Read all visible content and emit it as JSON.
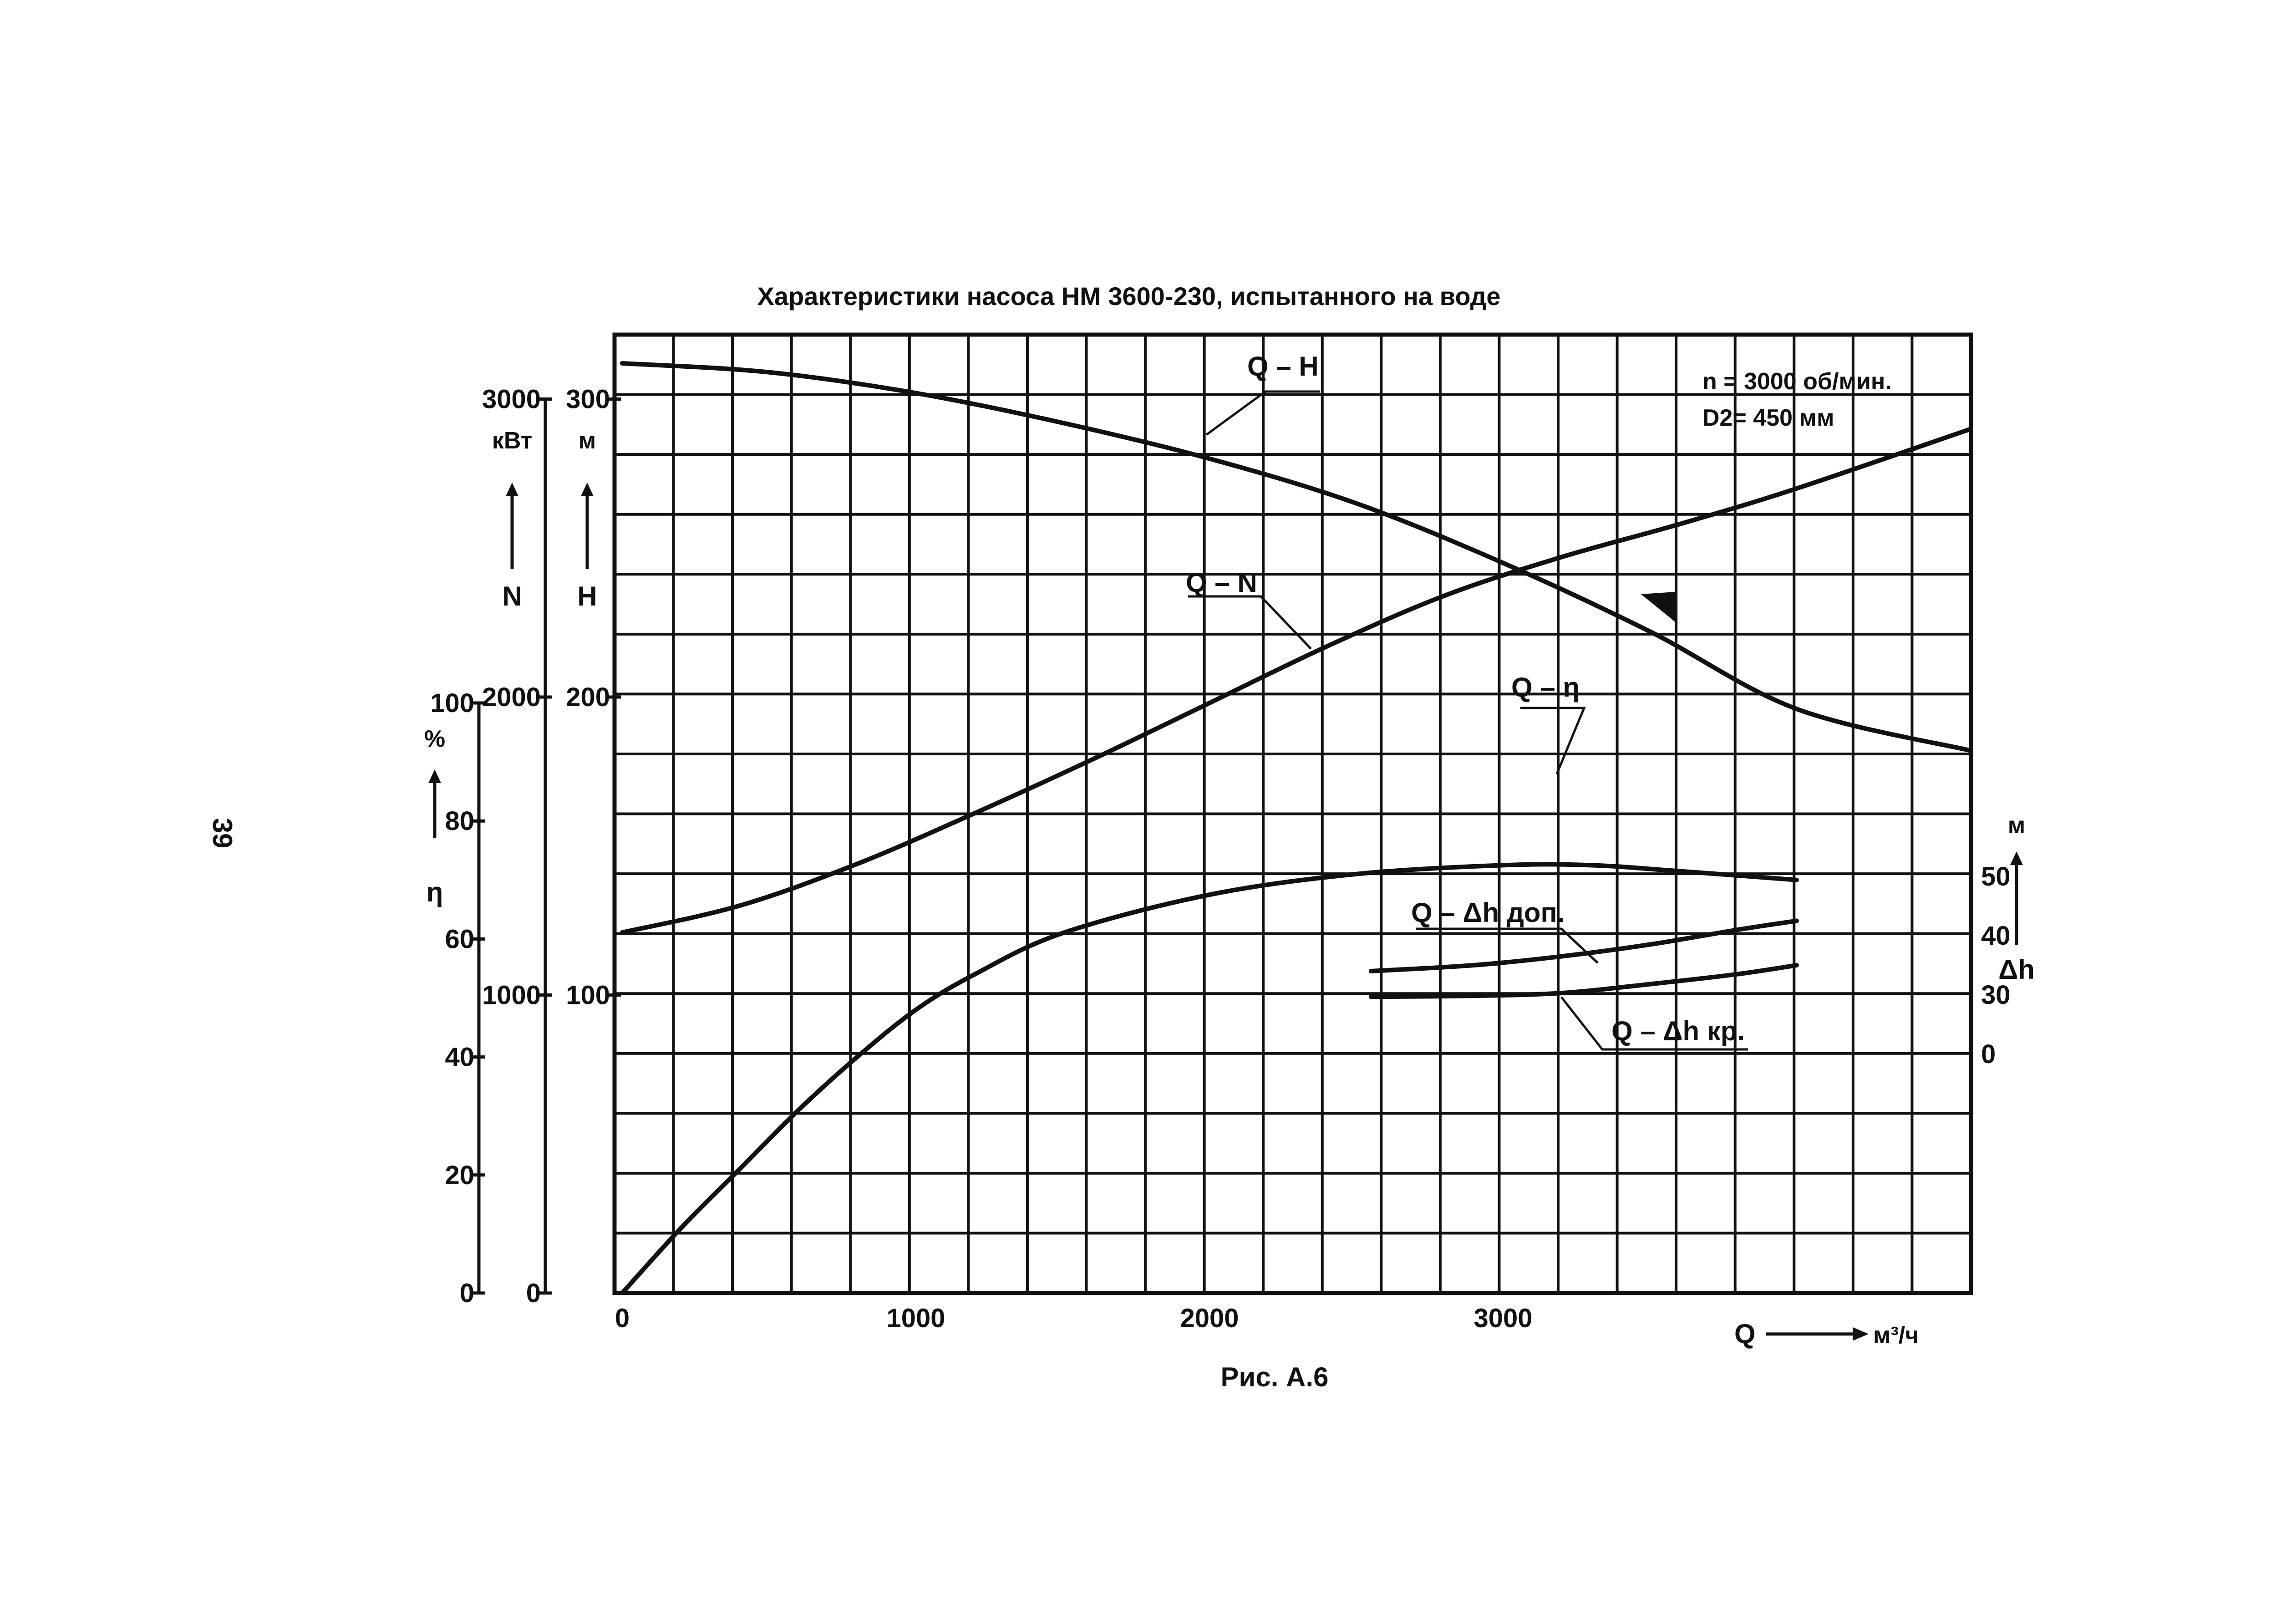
{
  "page_number": "39",
  "chart_data": {
    "type": "line",
    "title": "Характеристики насоса НМ 3600-230, испытанного на воде",
    "caption": "Рис. А.6",
    "annotations": [
      "n = 3000 об/мин.",
      "D2= 450 мм"
    ],
    "x_axis": {
      "label": "Q",
      "unit": "м³/ч",
      "ticks": [
        "0",
        "1000",
        "2000",
        "3000"
      ],
      "range": [
        0,
        4600
      ]
    },
    "y_axes": [
      {
        "id": "eta",
        "label": "η",
        "unit": "%",
        "ticks": [
          "0",
          "20",
          "40",
          "60",
          "80",
          "100"
        ],
        "range": [
          0,
          100
        ]
      },
      {
        "id": "N",
        "label": "N",
        "unit": "кВт",
        "ticks": [
          "0",
          "1000",
          "2000",
          "3000"
        ],
        "range": [
          0,
          3000
        ]
      },
      {
        "id": "H",
        "label": "H",
        "unit": "м",
        "ticks": [
          "100",
          "200",
          "300"
        ],
        "range": [
          0,
          300
        ]
      },
      {
        "id": "dh",
        "label": "Δh",
        "unit": "м",
        "ticks": [
          "0",
          "30",
          "40",
          "50"
        ],
        "range": [
          0,
          60
        ]
      }
    ],
    "grid": true,
    "series": [
      {
        "name": "Q – H",
        "axis": "H",
        "x": [
          0,
          500,
          1000,
          1500,
          2000,
          2500,
          3000,
          3500,
          4000,
          4600
        ],
        "y": [
          312,
          309,
          302,
          292,
          280,
          265,
          245,
          222,
          196,
          182
        ]
      },
      {
        "name": "Q – N",
        "axis": "N",
        "x": [
          0,
          400,
          800,
          1200,
          1600,
          2000,
          2400,
          2800,
          3200,
          3600,
          4000,
          4600
        ],
        "y": [
          1210,
          1300,
          1440,
          1610,
          1790,
          1980,
          2170,
          2340,
          2470,
          2580,
          2700,
          2900
        ]
      },
      {
        "name": "Q – η",
        "axis": "eta",
        "x": [
          0,
          200,
          400,
          600,
          800,
          1000,
          1200,
          1500,
          2000,
          2500,
          3000,
          3300,
          3600,
          4000
        ],
        "y": [
          0,
          11,
          21,
          31,
          40,
          48,
          54,
          61,
          67.5,
          71,
          72.5,
          72.5,
          71.5,
          70
        ]
      },
      {
        "name": "Q – Δh доп.",
        "axis": "dh",
        "x": [
          2550,
          2900,
          3200,
          3500,
          3800,
          4000
        ],
        "y": [
          34,
          35,
          36.5,
          38.5,
          41,
          42.5
        ]
      },
      {
        "name": "Q – Δh кр.",
        "axis": "dh",
        "x": [
          2550,
          2900,
          3200,
          3500,
          3800,
          4000
        ],
        "y": [
          29,
          29.5,
          30.3,
          31.8,
          33.5,
          35
        ]
      }
    ]
  }
}
